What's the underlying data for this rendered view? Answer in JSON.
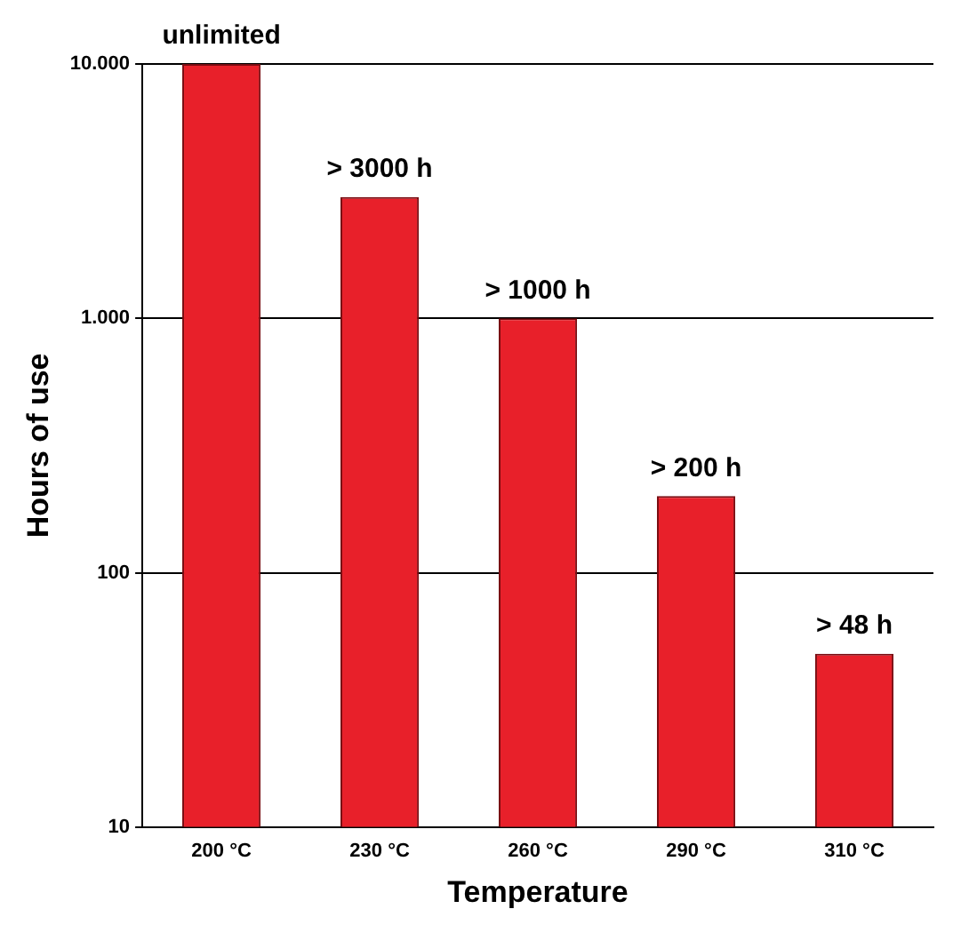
{
  "chart_data": {
    "type": "bar",
    "xlabel": "Temperature",
    "ylabel": "Hours of use",
    "categories": [
      "200 °C",
      "230 °C",
      "260 °C",
      "290 °C",
      "310 °C"
    ],
    "values": [
      10000,
      3000,
      1000,
      200,
      48
    ],
    "value_labels": [
      "unlimited",
      "> 3000 h",
      "> 1000 h",
      "> 200 h",
      "> 48 h"
    ],
    "color": "#e8202a",
    "log": true,
    "ylim": [
      10,
      10000
    ],
    "yticks": [
      10,
      100,
      {
        "value": 1000,
        "label": "1.000"
      },
      {
        "value": 10000,
        "label": "10.000"
      }
    ],
    "grid": "y"
  }
}
